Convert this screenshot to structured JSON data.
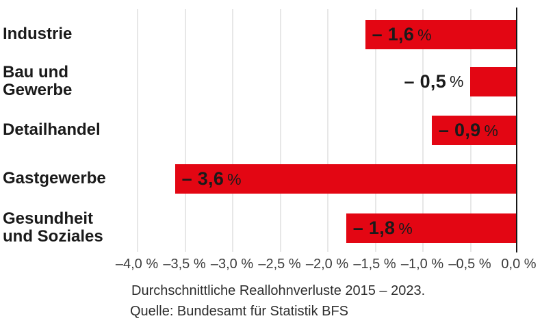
{
  "chart_data": {
    "type": "bar",
    "orientation": "horizontal",
    "title": "",
    "xlabel": "",
    "ylabel": "",
    "xlim": [
      -4.0,
      0.0
    ],
    "grid": true,
    "legend": false,
    "bar_color": "#e30613",
    "categories": [
      "Industrie",
      "Bau und Gewerbe",
      "Detailhandel",
      "Gastgewerbe",
      "Gesundheit und Soziales"
    ],
    "values": [
      -1.6,
      -0.5,
      -0.9,
      -3.6,
      -1.8
    ],
    "rows": [
      {
        "category": "Industrie",
        "display_label": "Industrie",
        "value": -1.6,
        "value_text": "– 1,6",
        "unit": "%"
      },
      {
        "category": "Bau und Gewerbe",
        "display_label": "Bau und\nGewerbe",
        "value": -0.5,
        "value_text": "– 0,5",
        "unit": "%"
      },
      {
        "category": "Detailhandel",
        "display_label": "Detailhandel",
        "value": -0.9,
        "value_text": "– 0,9",
        "unit": "%"
      },
      {
        "category": "Gastgewerbe",
        "display_label": "Gastgewerbe",
        "value": -3.6,
        "value_text": "– 3,6",
        "unit": "%"
      },
      {
        "category": "Gesundheit und Soziales",
        "display_label": "Gesundheit\nund Soziales",
        "value": -1.8,
        "value_text": "– 1,8",
        "unit": "%"
      }
    ],
    "x_ticks": [
      "–4,0 %",
      "–3,5 %",
      "–3,0 %",
      "–2,5 %",
      "–2,0 %",
      "–1,5 %",
      "–1,0 %",
      "–0,5 %",
      "0,0 %"
    ],
    "caption": "Durchschnittliche Reallohnverluste 2015 – 2023.",
    "source": "Quelle: Bundesamt für Statistik BFS"
  }
}
